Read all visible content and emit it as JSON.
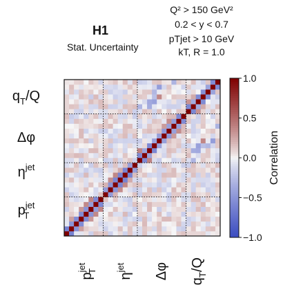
{
  "header": {
    "title": "H1",
    "subtitle": "Stat. Uncertainty",
    "cuts": [
      "Q² > 150 GeV²",
      "0.2 < y < 0.7",
      "pTjet > 10 GeV",
      "kT, R = 1.0"
    ]
  },
  "chart_data": {
    "type": "heatmap",
    "n_bins": 32,
    "blocks": [
      {
        "label": "pTjet",
        "start": 0,
        "size": 8
      },
      {
        "label": "ηjet",
        "start": 8,
        "size": 7
      },
      {
        "label": "Δφ",
        "start": 15,
        "size": 10
      },
      {
        "label": "qT/Q",
        "start": 25,
        "size": 7
      }
    ],
    "x_tick_labels": [
      "pTjet",
      "ηjet",
      "Δφ",
      "qT/Q"
    ],
    "y_tick_labels_top_to_bottom": [
      "qT/Q",
      "Δφ",
      "ηjet",
      "pTjet"
    ],
    "diagonal_value": 1.0,
    "colorbar": {
      "label": "Correlation",
      "range": [
        -1.0,
        1.0
      ],
      "ticks": [
        1.0,
        0.5,
        0.0,
        -0.5,
        -1.0
      ],
      "tick_labels": [
        "1.0",
        "0.5",
        "0.0",
        "−0.5",
        "−1.0"
      ]
    },
    "colors": {
      "negative": "#3b4cc0",
      "zero": "#f7f7f7",
      "positive": "#7f0000"
    }
  }
}
